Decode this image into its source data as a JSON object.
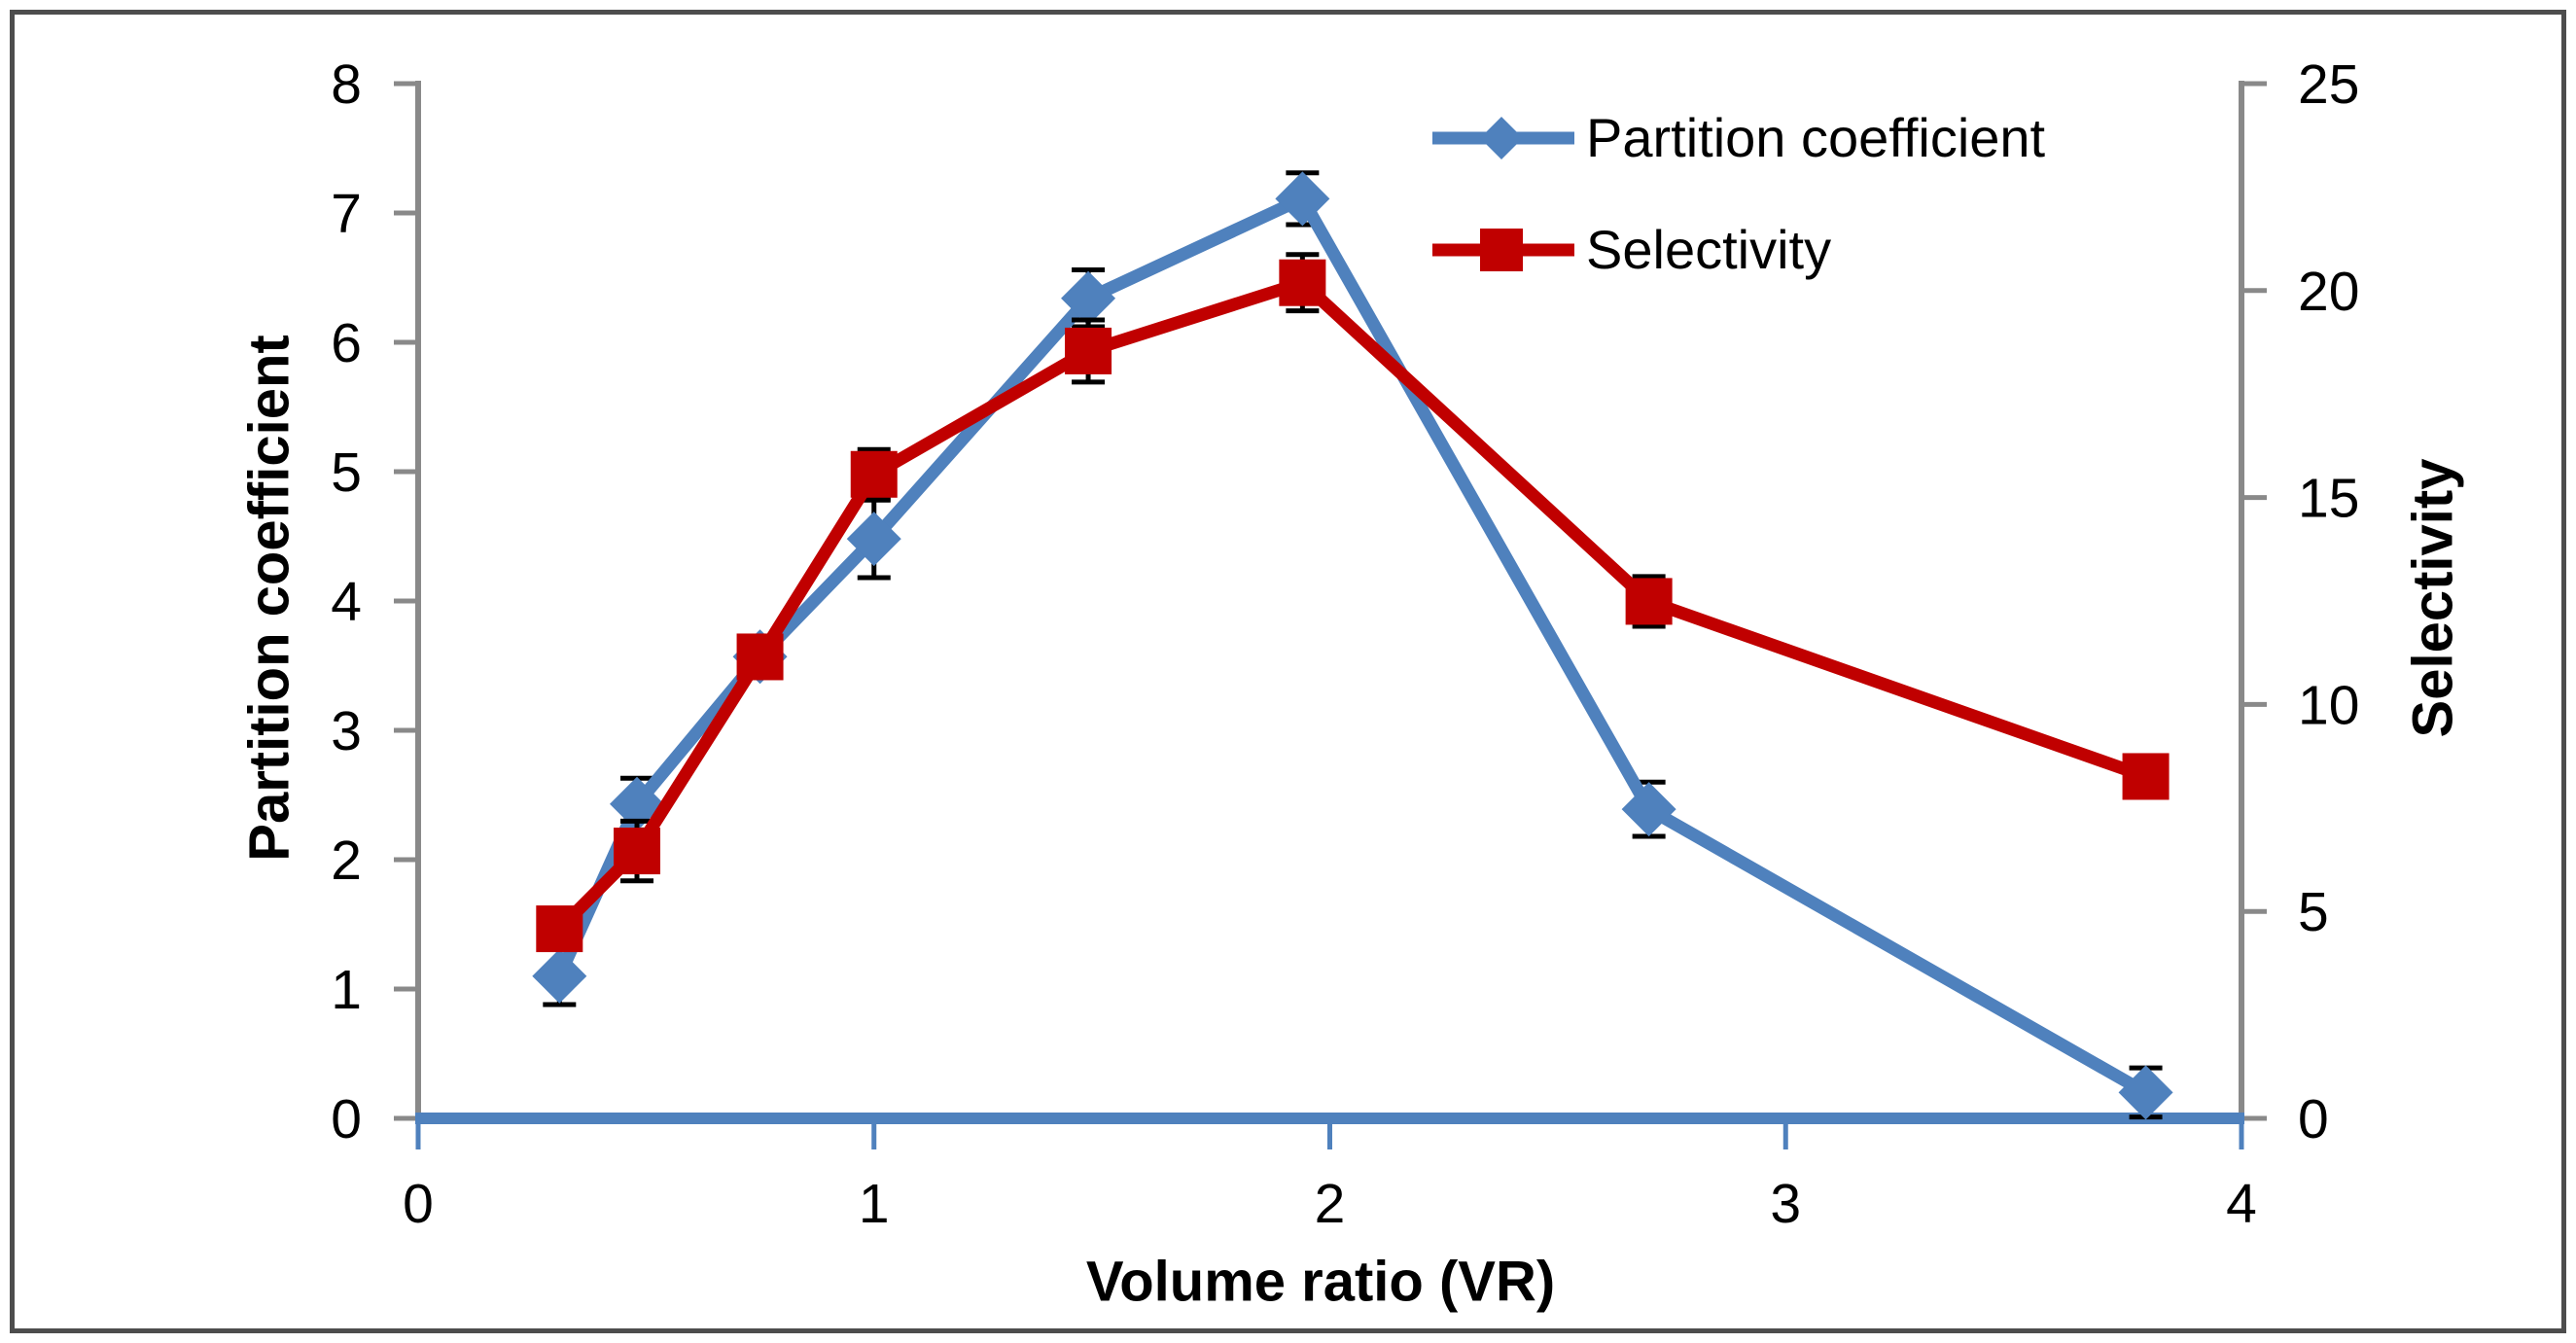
{
  "figure": {
    "background": "#ffffff",
    "border_color": "#4d4d4d"
  },
  "legend": {
    "items": [
      {
        "label": "Partition coefficient",
        "color": "#4F81BD",
        "marker": "diamond"
      },
      {
        "label": "Selectivity",
        "color": "#C00000",
        "marker": "square"
      }
    ]
  },
  "axes": {
    "x": {
      "title": "Volume ratio (VR)",
      "min": 0,
      "max": 4,
      "ticks": [
        0,
        1,
        2,
        3,
        4
      ],
      "line_color": "#4F81BD",
      "tick_color": "#4F81BD",
      "label_color": "#000000"
    },
    "y_left": {
      "title": "Partition coefficient",
      "min": 0,
      "max": 8,
      "ticks": [
        0,
        1,
        2,
        3,
        4,
        5,
        6,
        7,
        8
      ],
      "line_color": "#898989",
      "tick_color": "#898989",
      "label_color": "#000000"
    },
    "y_right": {
      "title": "Selectivity",
      "min": 0,
      "max": 25,
      "ticks": [
        0,
        5,
        10,
        15,
        20,
        25
      ],
      "line_color": "#898989",
      "tick_color": "#898989",
      "label_color": "#000000"
    }
  },
  "chart_data": {
    "type": "line",
    "title": "",
    "xlabel": "Volume ratio (VR)",
    "ylabel_left": "Partition coefficient",
    "ylabel_right": "Selectivity",
    "x": [
      0.31,
      0.48,
      0.75,
      1.0,
      1.47,
      1.94,
      2.7,
      3.79
    ],
    "xlim": [
      0,
      4
    ],
    "ylim_left": [
      0,
      8
    ],
    "ylim_right": [
      0,
      25
    ],
    "grid": false,
    "legend_position": "top-right-inside",
    "error_bar_color": "#000000",
    "series": [
      {
        "name": "Partition coefficient",
        "axis": "left",
        "color": "#4F81BD",
        "marker": "diamond",
        "values": [
          1.1,
          2.43,
          3.57,
          4.48,
          6.34,
          7.11,
          2.39,
          0.2
        ],
        "errors": [
          0.22,
          0.2,
          0.12,
          0.3,
          0.22,
          0.2,
          0.21,
          0.19
        ]
      },
      {
        "name": "Selectivity",
        "axis": "right",
        "color": "#C00000",
        "marker": "square",
        "values": [
          4.58,
          6.46,
          11.15,
          15.56,
          18.54,
          20.19,
          12.49,
          8.26
        ],
        "errors": [
          0.3,
          0.72,
          0.3,
          0.6,
          0.75,
          0.68,
          0.6,
          0.3
        ]
      }
    ]
  }
}
